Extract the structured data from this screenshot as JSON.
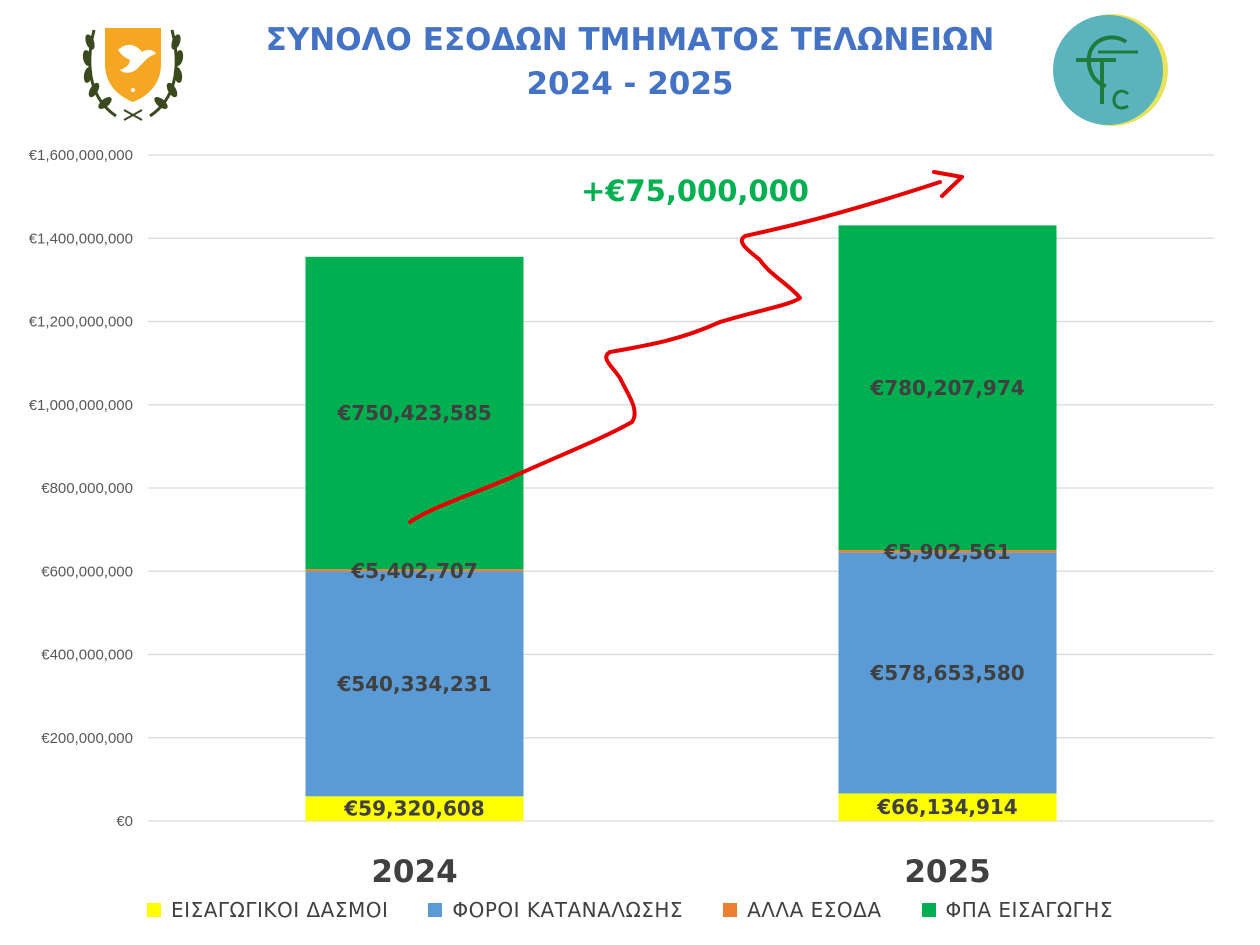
{
  "title": {
    "line1": "ΣΥΝΟΛΟ ΕΣΟΔΩΝ ΤΜΗΜΑΤΟΣ ΤΕΛΩΝΕΙΩΝ",
    "line2": "2024 - 2025"
  },
  "growth_label": "+€75,000,000",
  "icons": [
    "cyprus-coat-of-arms-icon",
    "customs-department-logo-icon"
  ],
  "colors": {
    "title": "#4472C4",
    "growth": "#00B050",
    "arrow": "#E60000"
  },
  "chart_data": {
    "type": "bar",
    "stacked": true,
    "categories": [
      "2024",
      "2025"
    ],
    "series": [
      {
        "name": "ΕΙΣΑΓΩΓΙΚΟΙ ΔΑΣΜΟΙ",
        "color": "#FFFF00",
        "values": [
          59320608,
          66134914
        ],
        "labels": [
          "€59,320,608",
          "€66,134,914"
        ]
      },
      {
        "name": "ΦΟΡΟΙ ΚΑΤΑΝΑΛΩΣΗΣ",
        "color": "#5B9BD5",
        "values": [
          540334231,
          578653580
        ],
        "labels": [
          "€540,334,231",
          "€578,653,580"
        ]
      },
      {
        "name": "ΑΛΛΑ ΕΣΟΔΑ",
        "color": "#ED7D31",
        "values": [
          5402707,
          5902561
        ],
        "labels": [
          "€5,402,707",
          "€5,902,561"
        ]
      },
      {
        "name": "ΦΠΑ ΕΙΣΑΓΩΓΗΣ",
        "color": "#00B050",
        "values": [
          750423585,
          780207974
        ],
        "labels": [
          "€750,423,585",
          "€780,207,974"
        ]
      }
    ],
    "y_ticks": [
      "€0",
      "€200,000,000",
      "€400,000,000",
      "€600,000,000",
      "€800,000,000",
      "€1,000,000,000",
      "€1,200,000,000",
      "€1,400,000,000",
      "€1,600,000,000"
    ],
    "ylim": [
      0,
      1600000000
    ],
    "grid": true,
    "legend_position": "bottom"
  }
}
